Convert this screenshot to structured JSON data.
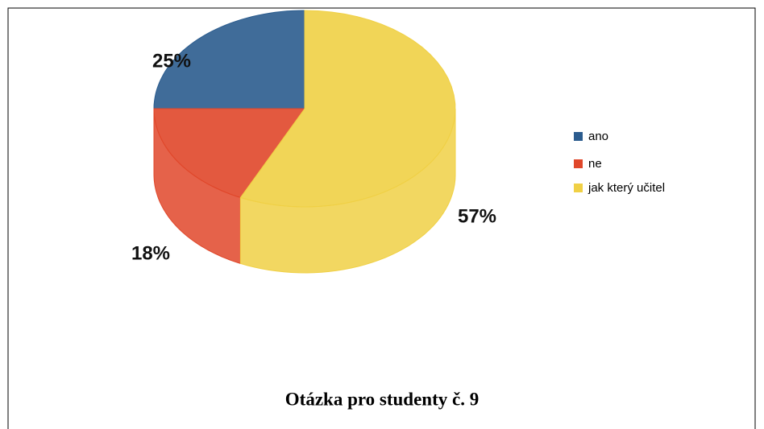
{
  "chart_data": {
    "type": "pie",
    "title": "Otázka pro studenty č. 9",
    "categories": [
      "ano",
      "ne",
      "jak který učitel"
    ],
    "values": [
      25,
      18,
      57
    ],
    "value_labels": [
      "25%",
      "18%",
      "57%"
    ],
    "colors": [
      "#2b5c8e",
      "#e0472a",
      "#f0d045"
    ],
    "legend": "right"
  }
}
